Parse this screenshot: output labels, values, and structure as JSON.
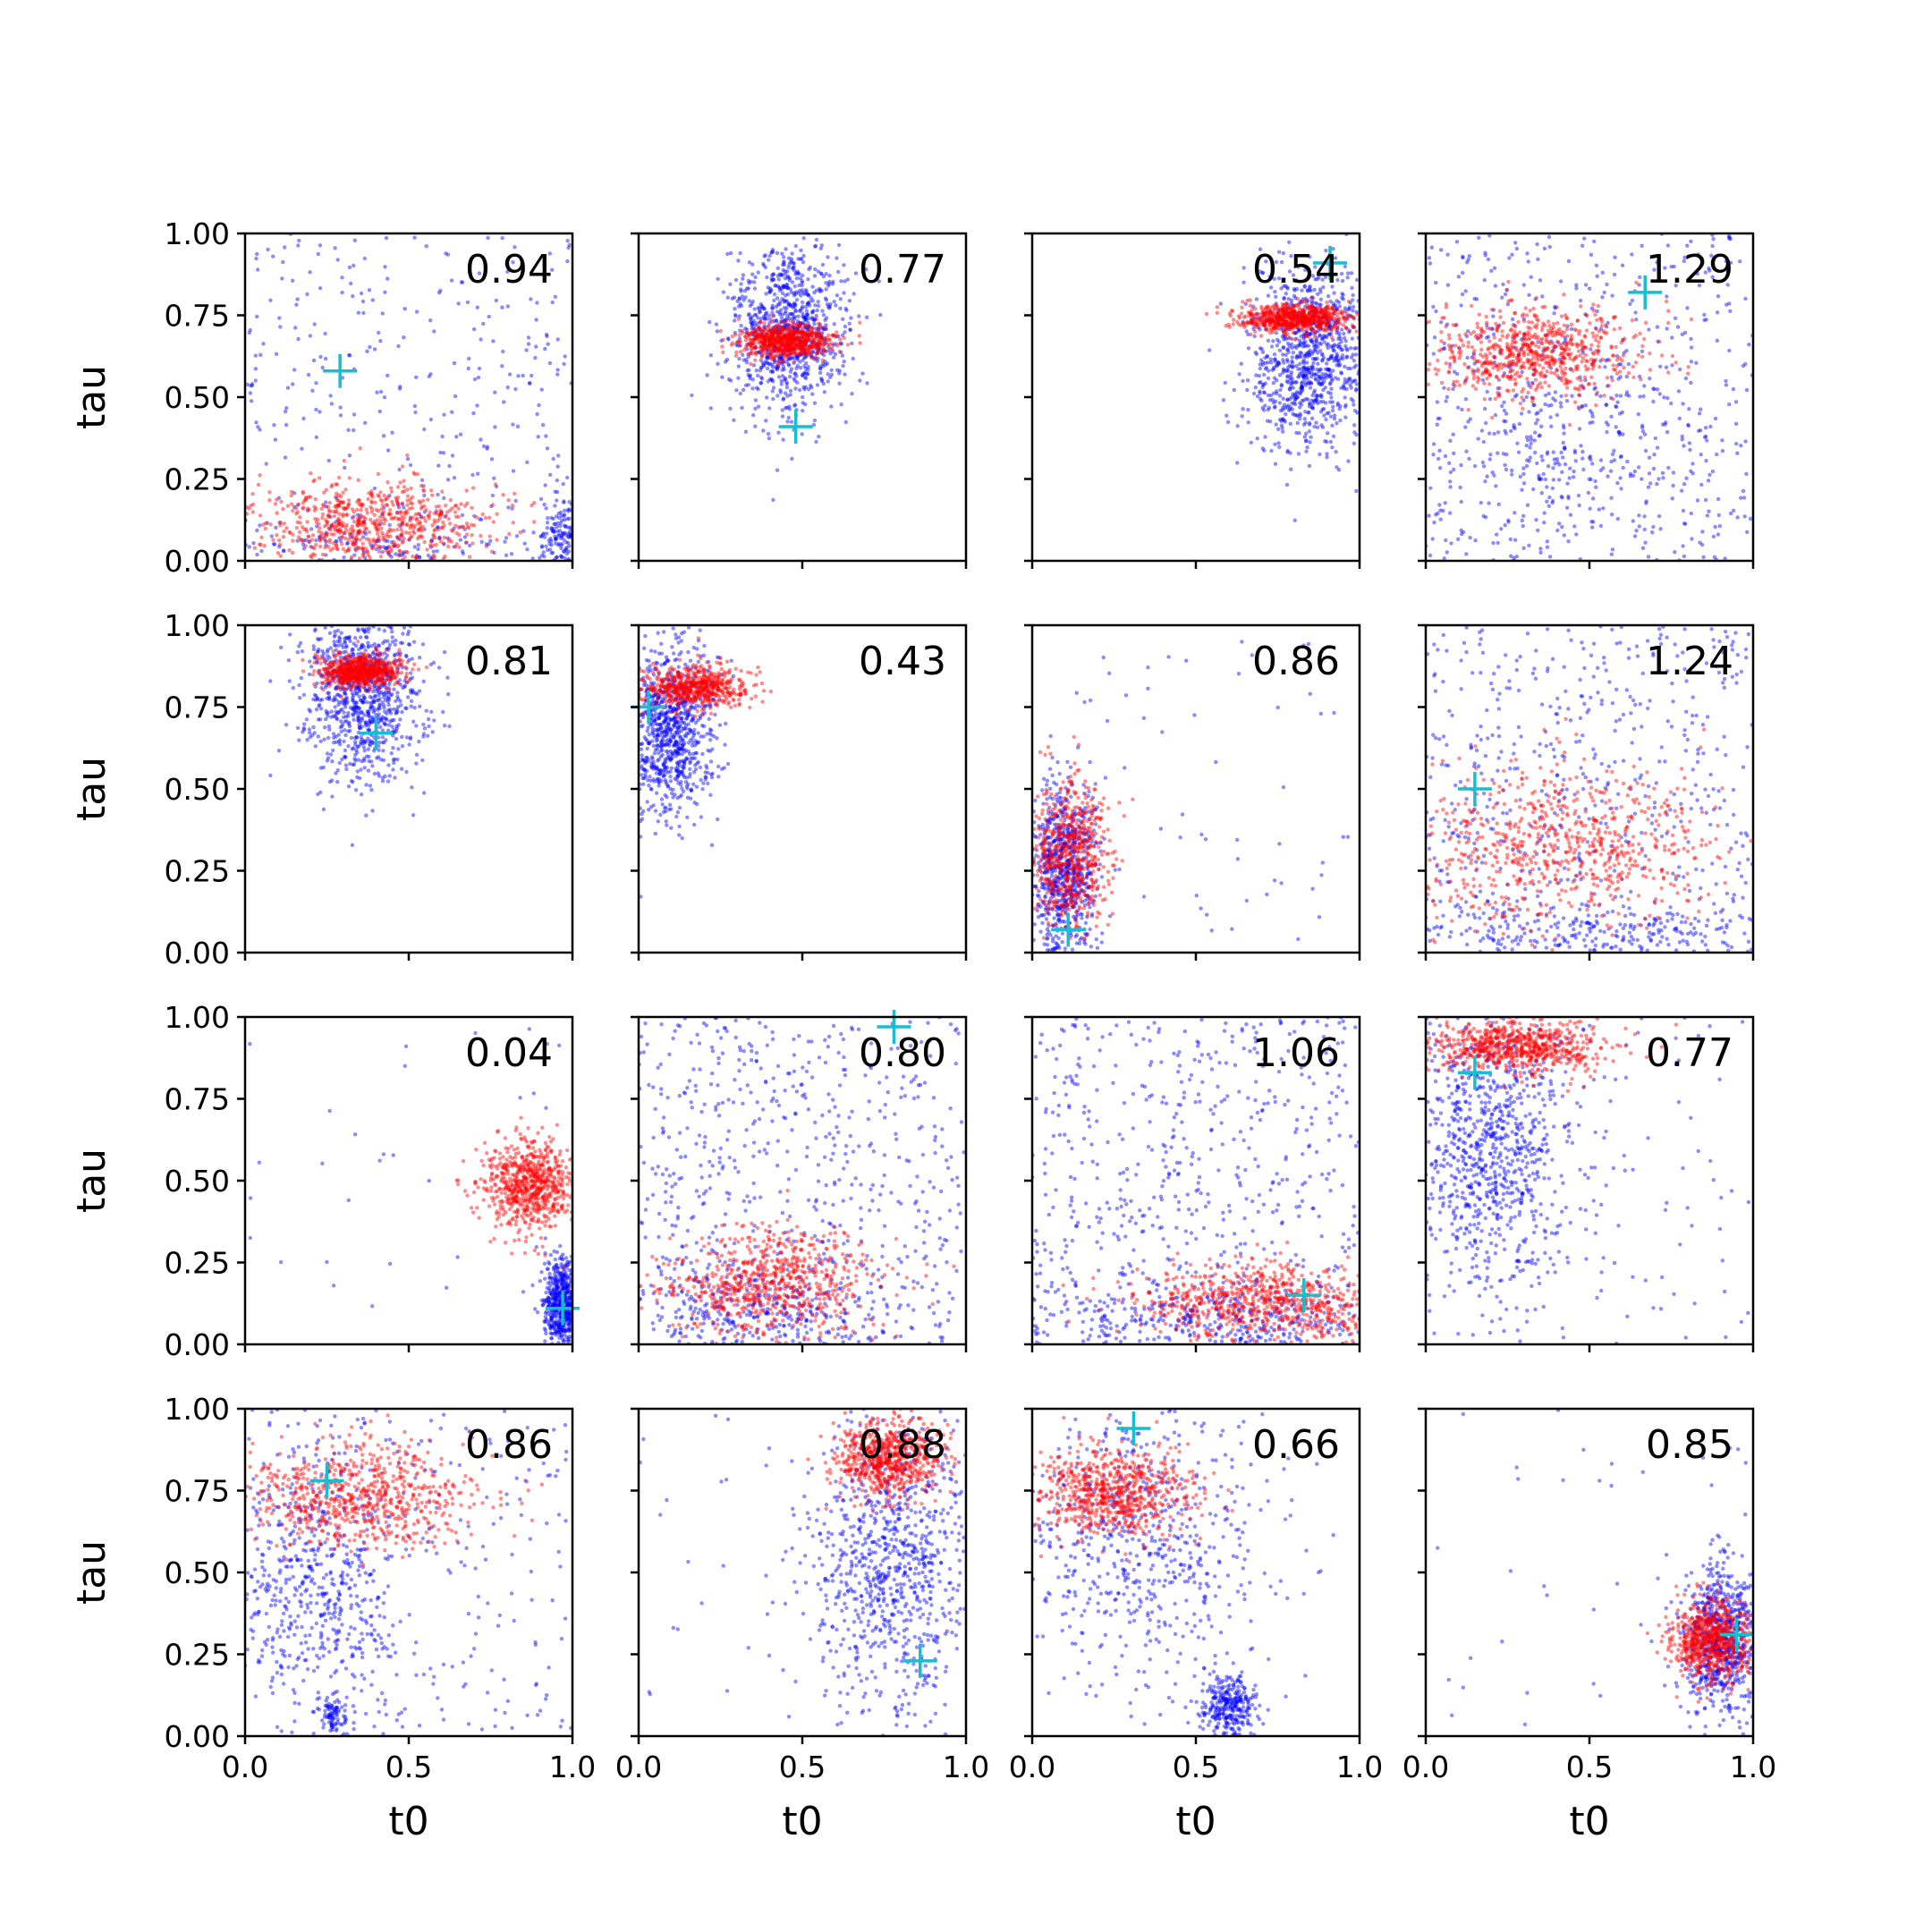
{
  "chart_data": {
    "type": "scatter",
    "grid": false,
    "layout": "4x4 grid of scatter panels, shared axes",
    "xlabel": "t0",
    "ylabel": "tau",
    "xlim": [
      0,
      1
    ],
    "ylim": [
      0,
      1
    ],
    "xticks": [
      "0.0",
      "0.5",
      "1.0"
    ],
    "yticks": [
      "0.00",
      "0.25",
      "0.50",
      "0.75",
      "1.00"
    ],
    "colors": {
      "blue_samples": "#0000ff",
      "red_samples": "#ff0000",
      "true_marker": "#17becf"
    },
    "panels": [
      {
        "score": "0.94",
        "truth": [
          0.29,
          0.58
        ],
        "blue": [
          {
            "c": [
              0.5,
              0.5
            ],
            "sd": [
              0.29,
              0.29
            ],
            "n": 320,
            "uniform": true
          },
          {
            "c": [
              0.97,
              0.06
            ],
            "sd": [
              0.04,
              0.06
            ],
            "n": 120
          },
          {
            "c": [
              0.45,
              0.05
            ],
            "sd": [
              0.22,
              0.04
            ],
            "n": 120
          }
        ],
        "red": [
          {
            "c": [
              0.38,
              0.11
            ],
            "sd": [
              0.17,
              0.07
            ],
            "n": 650
          }
        ]
      },
      {
        "score": "0.77",
        "truth": [
          0.48,
          0.41
        ],
        "blue": [
          {
            "c": [
              0.46,
              0.7
            ],
            "sd": [
              0.09,
              0.13
            ],
            "n": 900
          }
        ],
        "red": [
          {
            "c": [
              0.45,
              0.67
            ],
            "sd": [
              0.07,
              0.025
            ],
            "n": 700
          }
        ]
      },
      {
        "score": "0.54",
        "truth": [
          0.91,
          0.91
        ],
        "blue": [
          {
            "c": [
              0.85,
              0.62
            ],
            "sd": [
              0.1,
              0.14
            ],
            "n": 900
          }
        ],
        "red": [
          {
            "c": [
              0.8,
              0.74
            ],
            "sd": [
              0.08,
              0.022
            ],
            "n": 700
          }
        ]
      },
      {
        "score": "1.29",
        "truth": [
          0.67,
          0.82
        ],
        "blue": [
          {
            "c": [
              0.5,
              0.5
            ],
            "sd": [
              0.29,
              0.29
            ],
            "n": 500,
            "uniform": true
          },
          {
            "c": [
              0.45,
              0.35
            ],
            "sd": [
              0.2,
              0.15
            ],
            "n": 250
          }
        ],
        "red": [
          {
            "c": [
              0.33,
              0.63
            ],
            "sd": [
              0.16,
              0.07
            ],
            "n": 700
          }
        ]
      },
      {
        "score": "0.81",
        "truth": [
          0.4,
          0.67
        ],
        "blue": [
          {
            "c": [
              0.36,
              0.8
            ],
            "sd": [
              0.09,
              0.13
            ],
            "n": 900
          }
        ],
        "red": [
          {
            "c": [
              0.35,
              0.86
            ],
            "sd": [
              0.06,
              0.025
            ],
            "n": 700
          }
        ]
      },
      {
        "score": "0.43",
        "truth": [
          0.03,
          0.75
        ],
        "blue": [
          {
            "c": [
              0.09,
              0.68
            ],
            "sd": [
              0.07,
              0.13
            ],
            "n": 800
          }
        ],
        "red": [
          {
            "c": [
              0.17,
              0.81
            ],
            "sd": [
              0.08,
              0.03
            ],
            "n": 600
          }
        ]
      },
      {
        "score": "0.86",
        "truth": [
          0.11,
          0.07
        ],
        "blue": [
          {
            "c": [
              0.1,
              0.25
            ],
            "sd": [
              0.05,
              0.14
            ],
            "n": 700
          },
          {
            "c": [
              0.5,
              0.5
            ],
            "sd": [
              0.29,
              0.29
            ],
            "n": 60,
            "uniform": true
          }
        ],
        "red": [
          {
            "c": [
              0.12,
              0.3
            ],
            "sd": [
              0.06,
              0.12
            ],
            "n": 600
          }
        ]
      },
      {
        "score": "1.24",
        "truth": [
          0.15,
          0.5
        ],
        "blue": [
          {
            "c": [
              0.5,
              0.5
            ],
            "sd": [
              0.29,
              0.29
            ],
            "n": 550,
            "uniform": true
          },
          {
            "c": [
              0.5,
              0.06
            ],
            "sd": [
              0.3,
              0.05
            ],
            "n": 200
          }
        ],
        "red": [
          {
            "c": [
              0.4,
              0.32
            ],
            "sd": [
              0.25,
              0.12
            ],
            "n": 700
          }
        ]
      },
      {
        "score": "0.04",
        "truth": [
          0.97,
          0.11
        ],
        "blue": [
          {
            "c": [
              0.97,
              0.12
            ],
            "sd": [
              0.03,
              0.07
            ],
            "n": 500
          },
          {
            "c": [
              0.5,
              0.5
            ],
            "sd": [
              0.29,
              0.29
            ],
            "n": 30,
            "uniform": true
          }
        ],
        "red": [
          {
            "c": [
              0.87,
              0.49
            ],
            "sd": [
              0.07,
              0.07
            ],
            "n": 700
          }
        ]
      },
      {
        "score": "0.80",
        "truth": [
          0.78,
          0.97
        ],
        "blue": [
          {
            "c": [
              0.5,
              0.5
            ],
            "sd": [
              0.29,
              0.29
            ],
            "n": 600,
            "uniform": true
          },
          {
            "c": [
              0.4,
              0.1
            ],
            "sd": [
              0.2,
              0.08
            ],
            "n": 300
          }
        ],
        "red": [
          {
            "c": [
              0.4,
              0.19
            ],
            "sd": [
              0.16,
              0.08
            ],
            "n": 700
          }
        ]
      },
      {
        "score": "1.06",
        "truth": [
          0.83,
          0.15
        ],
        "blue": [
          {
            "c": [
              0.5,
              0.5
            ],
            "sd": [
              0.29,
              0.29
            ],
            "n": 600,
            "uniform": true
          },
          {
            "c": [
              0.55,
              0.08
            ],
            "sd": [
              0.3,
              0.06
            ],
            "n": 300
          }
        ],
        "red": [
          {
            "c": [
              0.72,
              0.13
            ],
            "sd": [
              0.2,
              0.06
            ],
            "n": 700
          }
        ]
      },
      {
        "score": "0.77",
        "truth": [
          0.15,
          0.83
        ],
        "blue": [
          {
            "c": [
              0.2,
              0.6
            ],
            "sd": [
              0.12,
              0.22
            ],
            "n": 800
          },
          {
            "c": [
              0.5,
              0.5
            ],
            "sd": [
              0.29,
              0.29
            ],
            "n": 120,
            "uniform": true
          }
        ],
        "red": [
          {
            "c": [
              0.28,
              0.91
            ],
            "sd": [
              0.13,
              0.04
            ],
            "n": 700
          }
        ]
      },
      {
        "score": "0.86",
        "truth": [
          0.25,
          0.78
        ],
        "blue": [
          {
            "c": [
              0.2,
              0.45
            ],
            "sd": [
              0.13,
              0.2
            ],
            "n": 500
          },
          {
            "c": [
              0.5,
              0.5
            ],
            "sd": [
              0.29,
              0.29
            ],
            "n": 250,
            "uniform": true
          },
          {
            "c": [
              0.27,
              0.06
            ],
            "sd": [
              0.02,
              0.03
            ],
            "n": 80
          }
        ],
        "red": [
          {
            "c": [
              0.35,
              0.73
            ],
            "sd": [
              0.18,
              0.08
            ],
            "n": 700
          }
        ]
      },
      {
        "score": "0.88",
        "truth": [
          0.86,
          0.23
        ],
        "blue": [
          {
            "c": [
              0.78,
              0.5
            ],
            "sd": [
              0.12,
              0.22
            ],
            "n": 800
          },
          {
            "c": [
              0.5,
              0.5
            ],
            "sd": [
              0.29,
              0.29
            ],
            "n": 60,
            "uniform": true
          }
        ],
        "red": [
          {
            "c": [
              0.76,
              0.85
            ],
            "sd": [
              0.08,
              0.06
            ],
            "n": 700
          }
        ]
      },
      {
        "score": "0.66",
        "truth": [
          0.31,
          0.94
        ],
        "blue": [
          {
            "c": [
              0.35,
              0.6
            ],
            "sd": [
              0.2,
              0.22
            ],
            "n": 600
          },
          {
            "c": [
              0.6,
              0.09
            ],
            "sd": [
              0.04,
              0.05
            ],
            "n": 300
          }
        ],
        "red": [
          {
            "c": [
              0.24,
              0.74
            ],
            "sd": [
              0.12,
              0.07
            ],
            "n": 700
          }
        ]
      },
      {
        "score": "0.85",
        "truth": [
          0.95,
          0.31
        ],
        "blue": [
          {
            "c": [
              0.9,
              0.3
            ],
            "sd": [
              0.06,
              0.11
            ],
            "n": 700
          },
          {
            "c": [
              0.5,
              0.5
            ],
            "sd": [
              0.29,
              0.29
            ],
            "n": 40,
            "uniform": true
          }
        ],
        "red": [
          {
            "c": [
              0.87,
              0.29
            ],
            "sd": [
              0.06,
              0.06
            ],
            "n": 700
          }
        ]
      }
    ]
  }
}
